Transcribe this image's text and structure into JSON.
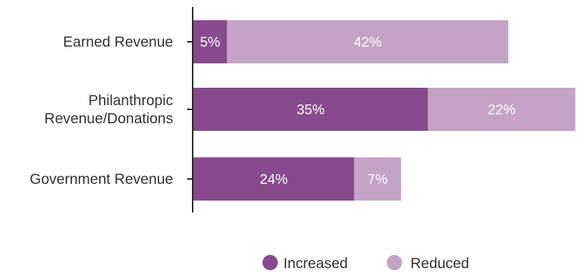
{
  "chart_data": {
    "type": "bar",
    "orientation": "horizontal",
    "stacked": true,
    "categories": [
      [
        "Earned Revenue"
      ],
      [
        "Philanthropic",
        "Revenue/Donations"
      ],
      [
        "Government Revenue"
      ]
    ],
    "series": [
      {
        "name": "Increased",
        "values": [
          5,
          35,
          24
        ],
        "color": "#884a8e"
      },
      {
        "name": "Reduced",
        "values": [
          42,
          22,
          7
        ],
        "color": "#c4a3c6"
      }
    ],
    "data_labels": [
      [
        "5%",
        "35%",
        "24%"
      ],
      [
        "42%",
        "22%",
        "7%"
      ]
    ],
    "xlim": [
      0,
      57
    ],
    "grid": false,
    "legend_position": "bottom",
    "title": "",
    "xlabel": "",
    "ylabel": ""
  }
}
